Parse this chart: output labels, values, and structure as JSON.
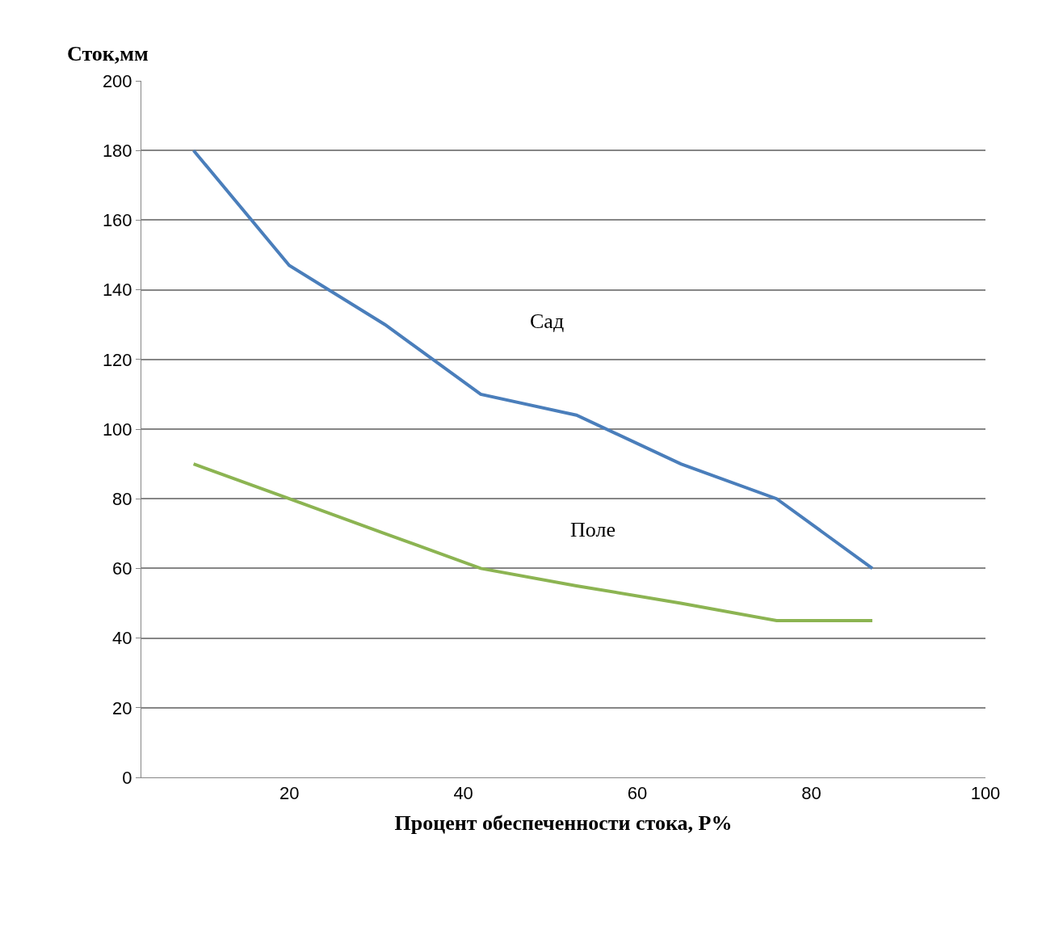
{
  "chart_data": {
    "type": "line",
    "xlabel": "Процент обеспеченности стока, P%",
    "ylabel": "Сток,мм",
    "x": [
      9,
      20,
      31,
      42,
      53,
      65,
      76,
      87
    ],
    "series": [
      {
        "color": "#4a7ebb",
        "values": [
          180,
          147,
          130,
          110,
          104,
          90,
          80,
          60
        ]
      },
      {
        "color": "#8cb452",
        "values": [
          90,
          80,
          70,
          60,
          55,
          50,
          45,
          45
        ]
      }
    ],
    "annotations": [
      "Сад",
      "Поле"
    ],
    "xlim": [
      3,
      100
    ],
    "xticks": [
      20,
      40,
      60,
      80,
      100
    ],
    "ylim": [
      0,
      200
    ],
    "yticks": [
      0,
      20,
      40,
      60,
      80,
      100,
      120,
      140,
      160,
      180,
      200
    ],
    "grid": "y",
    "marker": "none",
    "line_style": "solid"
  }
}
